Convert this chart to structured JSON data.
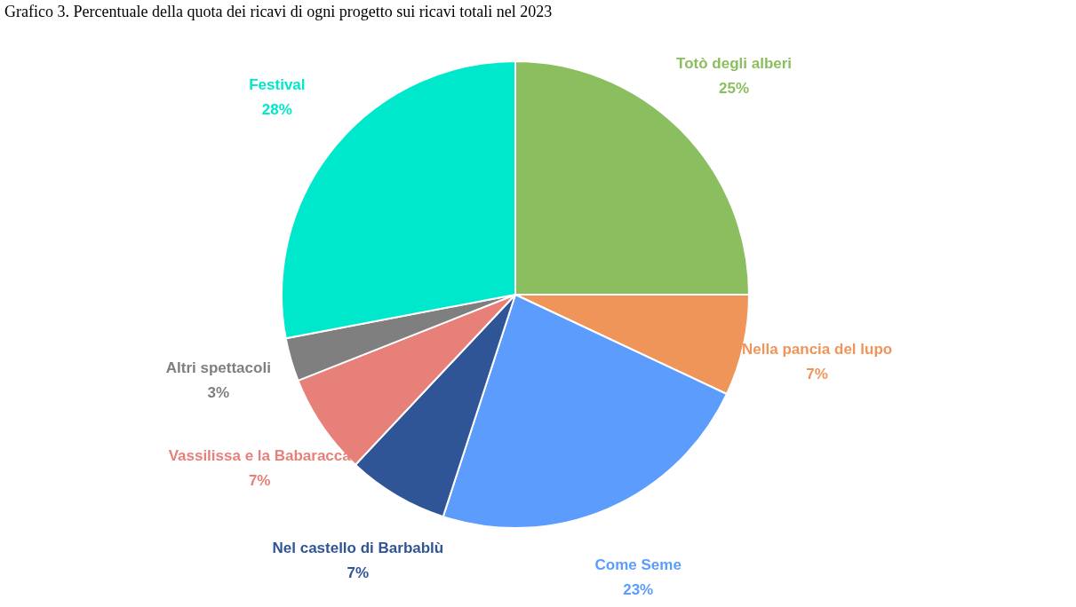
{
  "chart_data": {
    "type": "pie",
    "title": "Grafico 3. Percentuale della quota dei ricavi di ogni progetto sui ricavi totali nel 2023",
    "categories": [
      "Totò degli alberi",
      "Nella pancia del lupo",
      "Come Seme",
      "Nel castello di Barbablù",
      "Vassilissa e la Babaracca",
      "Altri spettacoli",
      "Festival"
    ],
    "values": [
      25,
      7,
      23,
      7,
      7,
      3,
      28
    ],
    "value_labels": [
      "25%",
      "7%",
      "23%",
      "7%",
      "7%",
      "3%",
      "28%"
    ],
    "colors": [
      "#8bbe5f",
      "#f0955a",
      "#5b9cfc",
      "#2f5597",
      "#e8807a",
      "#7f7f7f",
      "#00e8cc"
    ],
    "legend": false
  }
}
